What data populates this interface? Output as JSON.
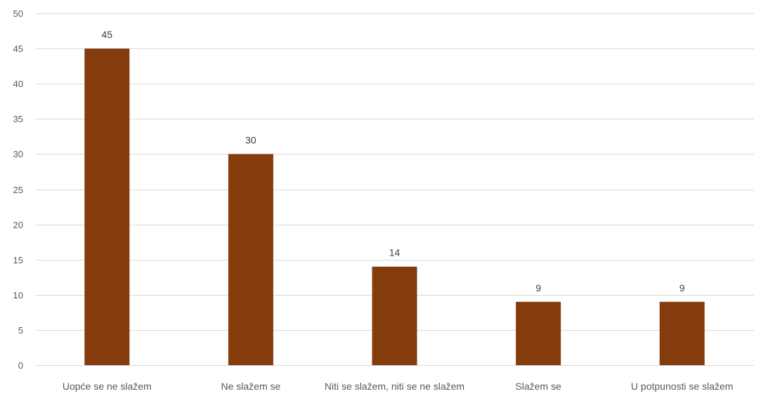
{
  "chart_data": {
    "type": "bar",
    "title": "",
    "xlabel": "",
    "ylabel": "",
    "categories": [
      "Uopće se ne slažem",
      "Ne slažem se",
      "Niti se slažem, niti se ne slažem",
      "Slažem se",
      "U potpunosti se slažem"
    ],
    "values": [
      45,
      30,
      14,
      9,
      9
    ],
    "ylim": [
      0,
      50
    ],
    "yticks": [
      0,
      5,
      10,
      15,
      20,
      25,
      30,
      35,
      40,
      45,
      50
    ],
    "grid": true,
    "legend": "none",
    "data_labels": true,
    "colors": {
      "bar": "#843C0C",
      "grid": "#D9D9D9",
      "axis_text": "#595959"
    }
  }
}
